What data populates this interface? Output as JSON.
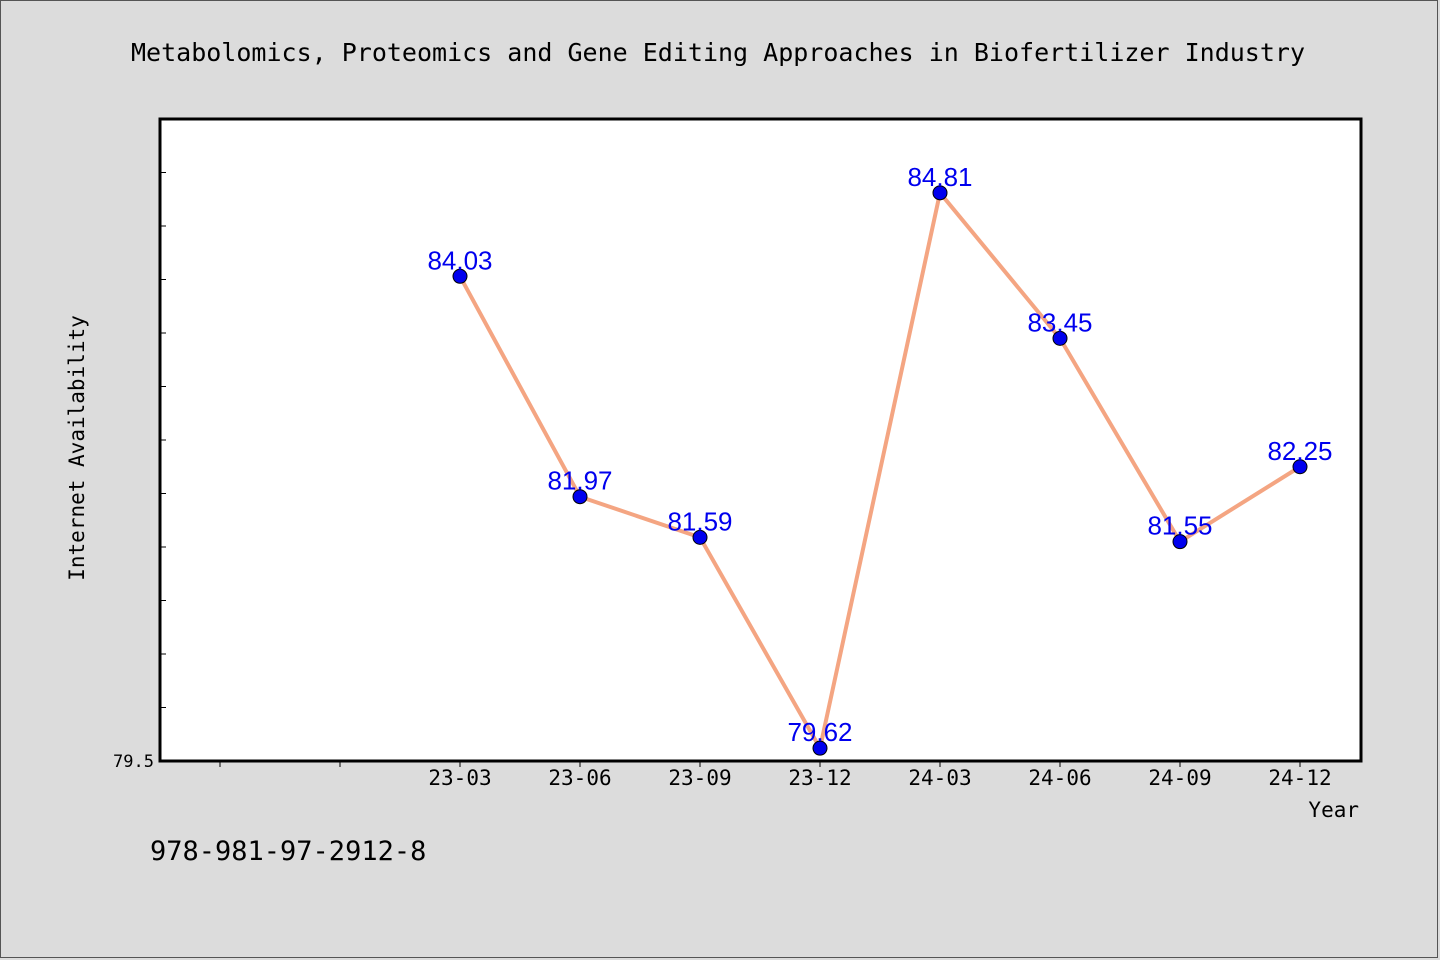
{
  "chart_data": {
    "type": "line",
    "title": "Metabolomics, Proteomics and Gene Editing Approaches in Biofertilizer Industry",
    "xlabel": "Year",
    "ylabel": "Internet Availability",
    "categories": [
      "23-03",
      "23-06",
      "23-09",
      "23-12",
      "24-03",
      "24-06",
      "24-09",
      "24-12"
    ],
    "series": [
      {
        "values": [
          84.03,
          81.97,
          81.59,
          79.62,
          84.81,
          83.45,
          81.55,
          82.25
        ]
      }
    ],
    "y_tick_labels": [
      "79.5"
    ],
    "ylim": [
      79.5,
      85.5
    ],
    "grid": false,
    "line_color": "#f4a582",
    "marker_color": "#0000ee",
    "label_color": "#0000ee"
  },
  "footer": {
    "code": "978-981-97-2912-8"
  }
}
